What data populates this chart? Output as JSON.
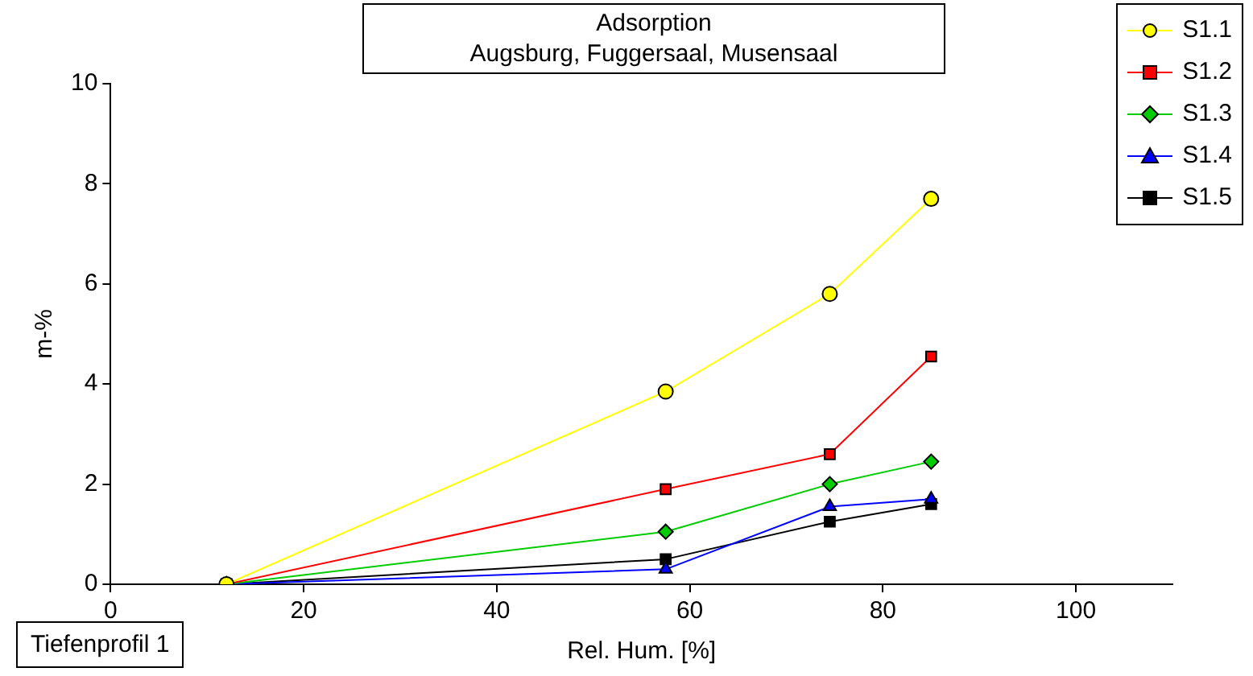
{
  "chart_data": {
    "type": "line",
    "title": "Adsorption",
    "subtitle": "Augsburg, Fuggersaal, Musensaal",
    "xlabel": "Rel. Hum. [%]",
    "ylabel": "m-%",
    "annotations": [
      "Tiefenprofil 1"
    ],
    "x": [
      12,
      57.5,
      74.5,
      85
    ],
    "series": [
      {
        "name": "S1.1",
        "color": "#ffff00",
        "marker": "circle",
        "values": [
          0,
          3.85,
          5.8,
          7.7
        ]
      },
      {
        "name": "S1.2",
        "color": "#ff0000",
        "marker": "square",
        "values": [
          0,
          1.9,
          2.6,
          4.55
        ]
      },
      {
        "name": "S1.3",
        "color": "#00cc00",
        "marker": "diamond",
        "values": [
          0,
          1.05,
          2.0,
          2.45
        ]
      },
      {
        "name": "S1.4",
        "color": "#0000ff",
        "marker": "triangle",
        "values": [
          0,
          0.3,
          1.55,
          1.7
        ]
      },
      {
        "name": "S1.5",
        "color": "#000000",
        "marker": "square",
        "values": [
          0,
          0.5,
          1.25,
          1.6
        ]
      }
    ],
    "xlim": [
      0,
      110
    ],
    "xticks": [
      0,
      20,
      40,
      60,
      80,
      100
    ],
    "ylim": [
      0,
      10
    ],
    "yticks": [
      0,
      2,
      4,
      6,
      8,
      10
    ],
    "grid": false,
    "legend": "top right"
  }
}
